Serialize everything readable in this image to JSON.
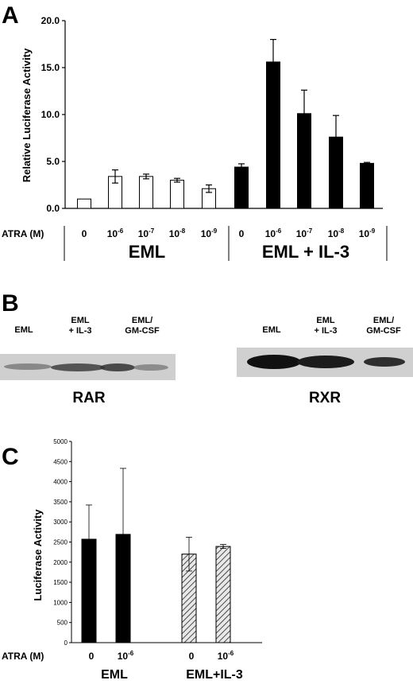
{
  "panels": {
    "A": {
      "letter": "A",
      "xlabel_row": "ATRA (M)",
      "groups": [
        "EML",
        "EML + IL-3"
      ],
      "chart_data": {
        "type": "bar",
        "ylabel": "Relative Luciferase Activity",
        "ylim": [
          0,
          20
        ],
        "yticks": [
          "0.0",
          "5.0",
          "10.0",
          "15.0",
          "20.0"
        ],
        "categories": [
          {
            "base": "0",
            "exp": ""
          },
          {
            "base": "10",
            "exp": "-6"
          },
          {
            "base": "10",
            "exp": "-7"
          },
          {
            "base": "10",
            "exp": "-8"
          },
          {
            "base": "10",
            "exp": "-9"
          },
          {
            "base": "0",
            "exp": ""
          },
          {
            "base": "10",
            "exp": "-6"
          },
          {
            "base": "10",
            "exp": "-7"
          },
          {
            "base": "10",
            "exp": "-8"
          },
          {
            "base": "10",
            "exp": "-9"
          }
        ],
        "values": [
          1.0,
          3.4,
          3.4,
          3.0,
          2.1,
          4.4,
          15.6,
          10.1,
          7.6,
          4.8
        ],
        "errors": [
          0.0,
          0.7,
          0.25,
          0.2,
          0.4,
          0.35,
          2.4,
          2.5,
          2.3,
          0.1
        ],
        "fills": [
          "#ffffff",
          "#ffffff",
          "#ffffff",
          "#ffffff",
          "#ffffff",
          "#000000",
          "#000000",
          "#000000",
          "#000000",
          "#000000"
        ],
        "grid": false
      }
    },
    "B": {
      "letter": "B",
      "left": {
        "lanes": [
          "EML",
          "EML + IL-3",
          "EML/ GM-CSF"
        ],
        "name": "RAR"
      },
      "right": {
        "lanes": [
          "EML",
          "EML + IL-3",
          "EML/ GM-CSF"
        ],
        "name": "RXR"
      }
    },
    "C": {
      "letter": "C",
      "xlabel_row": "ATRA (M)",
      "groups": [
        "EML",
        "EML+IL-3"
      ],
      "chart_data": {
        "type": "bar",
        "ylabel": "Luciferase Activity",
        "ylim": [
          0,
          5000
        ],
        "yticks": [
          "0",
          "500",
          "1000",
          "1500",
          "2000",
          "2500",
          "3000",
          "3500",
          "4000",
          "4500",
          "5000"
        ],
        "categories": [
          {
            "base": "0",
            "exp": ""
          },
          {
            "base": "10",
            "exp": "-6"
          },
          {
            "base": "0",
            "exp": ""
          },
          {
            "base": "10",
            "exp": "-6"
          }
        ],
        "values": [
          2570,
          2690,
          2200,
          2390
        ],
        "errors": [
          850,
          1640,
          420,
          50
        ],
        "fills": [
          "solid",
          "solid",
          "hatch",
          "hatch"
        ],
        "grid": false
      }
    }
  }
}
